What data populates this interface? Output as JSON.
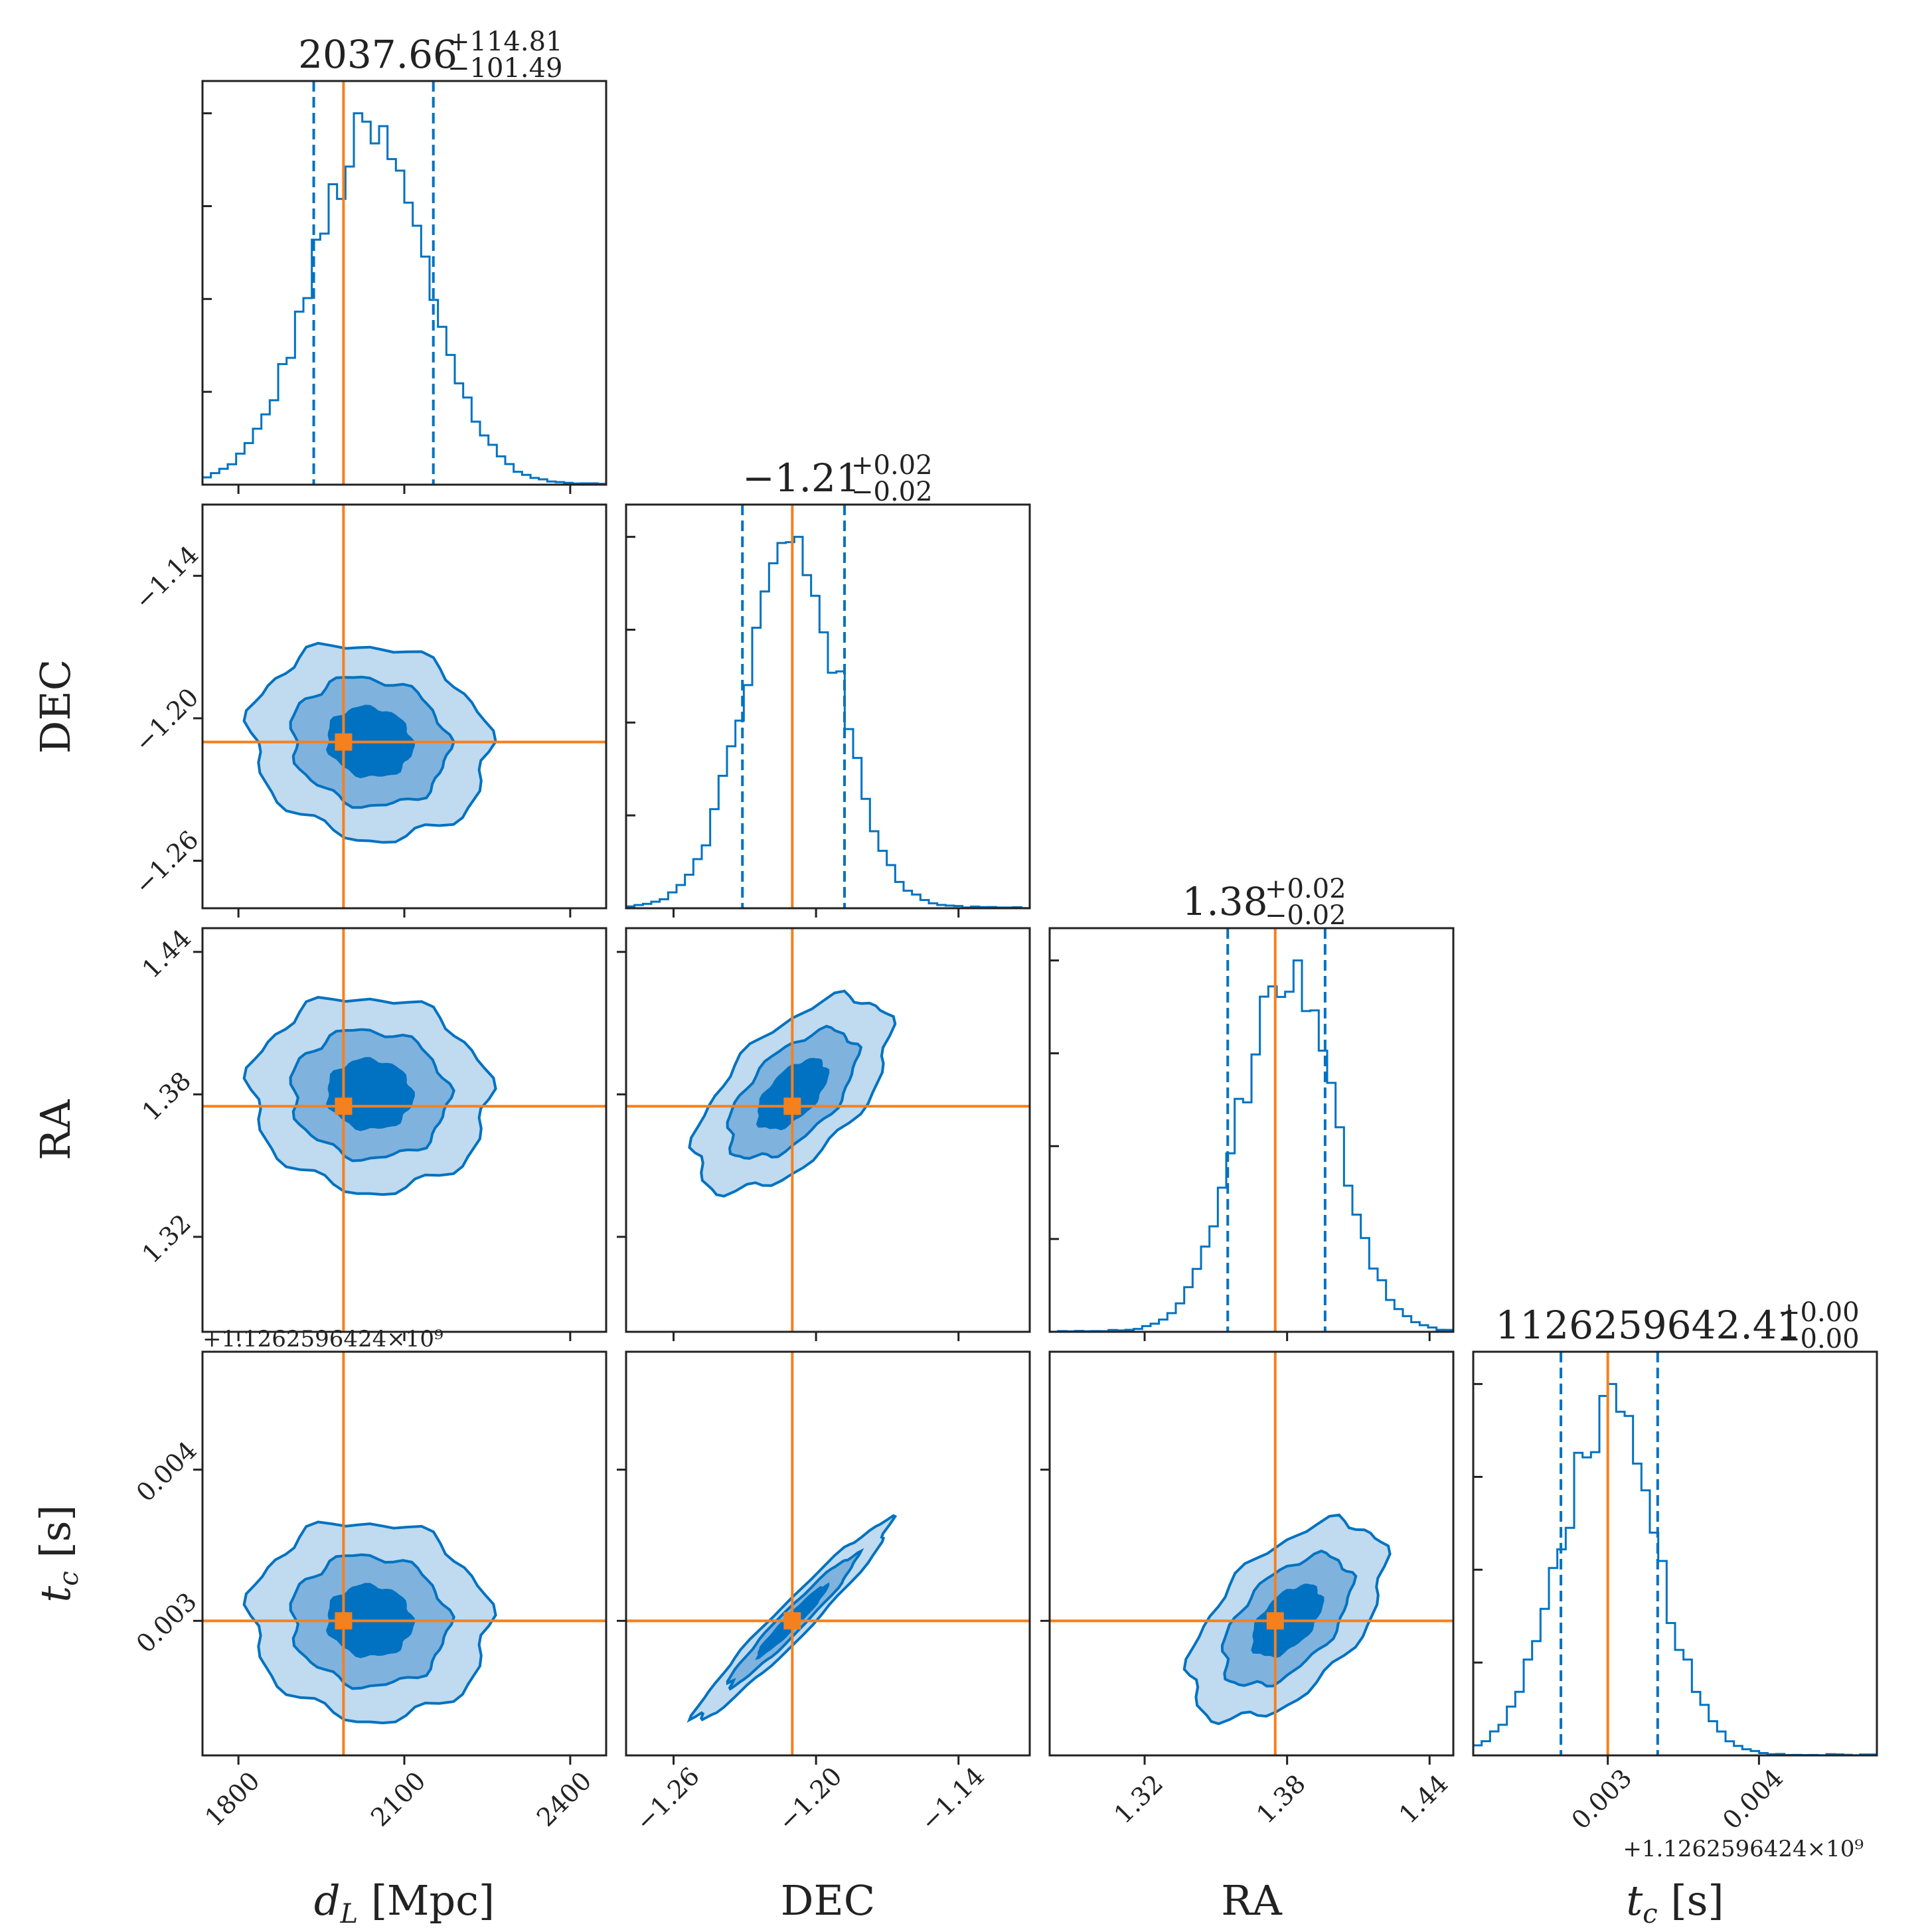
{
  "chart_data": {
    "type": "corner",
    "colors": {
      "posterior": "#0072c1",
      "fill_outer": "#c0daef",
      "fill_mid": "#7fb2dd",
      "fill_inner": "#0072c1",
      "truth": "#f5801e"
    },
    "parameters": [
      {
        "key": "dL",
        "label": "d_L [Mpc]",
        "label_main": "d",
        "label_sub": "L",
        "label_rest": " [Mpc]",
        "range": [
          1735,
          2465
        ],
        "ticks": [
          1800,
          2100,
          2400
        ],
        "tick_labels": [
          "1800",
          "2100",
          "2400"
        ],
        "truth": 1990,
        "median": 2037.66,
        "q_low": 1936.17,
        "q_high": 2152.47,
        "title_main": "2037.66",
        "title_plus": "+114.81",
        "title_minus": "−101.49",
        "hist_sigma": 105
      },
      {
        "key": "dec",
        "label": "DEC",
        "label_main": "DEC",
        "label_sub": "",
        "label_rest": "",
        "range": [
          -1.28,
          -1.11
        ],
        "ticks": [
          -1.26,
          -1.2,
          -1.14
        ],
        "tick_labels": [
          "−1.26",
          "−1.20",
          "−1.14"
        ],
        "truth": -1.21,
        "median": -1.21,
        "q_low": -1.231,
        "q_high": -1.188,
        "title_main": "−1.21",
        "title_plus": "+0.02",
        "title_minus": "−0.02",
        "hist_sigma": 0.02
      },
      {
        "key": "ra",
        "label": "RA",
        "label_main": "RA",
        "label_sub": "",
        "label_rest": "",
        "range": [
          1.28,
          1.45
        ],
        "ticks": [
          1.32,
          1.38,
          1.44
        ],
        "tick_labels": [
          "1.32",
          "1.38",
          "1.44"
        ],
        "truth": 1.375,
        "median": 1.38,
        "q_low": 1.355,
        "q_high": 1.396,
        "title_main": "1.38",
        "title_plus": "+0.02",
        "title_minus": "−0.02",
        "hist_sigma": 0.02
      },
      {
        "key": "tc",
        "label": "t_c [s]",
        "label_main": "t",
        "label_sub": "c",
        "label_rest": " [s]",
        "range": [
          0.00211,
          0.00478
        ],
        "ticks": [
          0.003,
          0.004
        ],
        "tick_labels": [
          "0.003",
          "0.004"
        ],
        "truth": 0.003,
        "median": 0.003,
        "q_low": 0.00269,
        "q_high": 0.00333,
        "title_main": "1126259642.41",
        "title_plus": "+0.00",
        "title_minus": "−0.00",
        "hist_sigma": 0.00032,
        "offset_text": "+1.1262596424×10⁹"
      }
    ],
    "correlations": {
      "1,0": -0.1,
      "2,0": -0.05,
      "2,1": 0.6,
      "3,0": -0.05,
      "3,1": 0.97,
      "3,2": 0.55
    },
    "contour_levels": [
      "0.5σ",
      "1σ",
      "1.5σ"
    ],
    "title": "",
    "legend": "none",
    "grid": false
  }
}
